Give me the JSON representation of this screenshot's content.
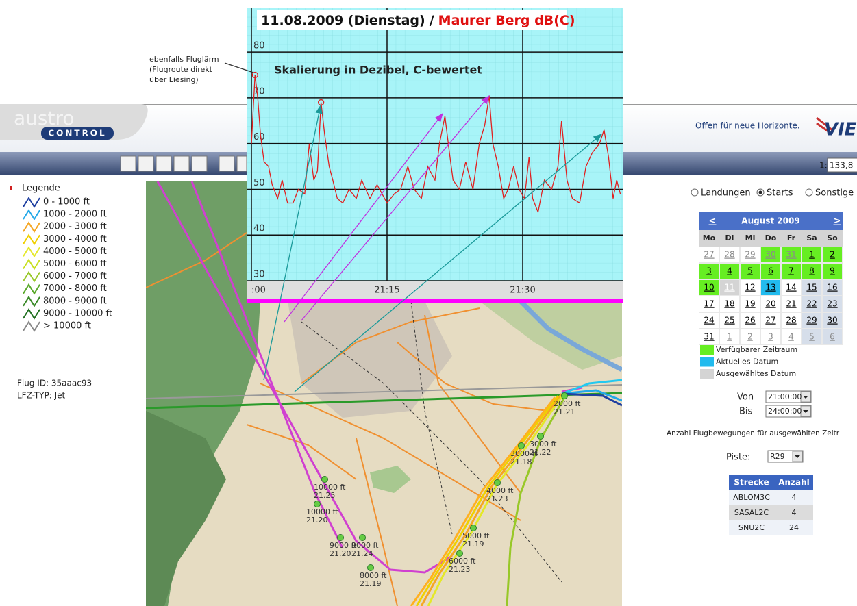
{
  "annotation": [
    "ebenfalls Fluglärm",
    "(Flugroute direkt",
    "über Liesing)"
  ],
  "header": {
    "logo_top": "austro",
    "logo_bottom": "CONTROL",
    "slogan": "Offen für neue Horizonte.",
    "logo_right": "VIE"
  },
  "toolbar": {
    "scale_prefix": "1:",
    "scale_value": "133,8"
  },
  "legend": {
    "title": "Legende",
    "items": [
      {
        "label": "0 - 1000 ft",
        "color": "#1f3fa0"
      },
      {
        "label": "1000 - 2000 ft",
        "color": "#22a8e8"
      },
      {
        "label": "2000 - 3000 ft",
        "color": "#f5a623"
      },
      {
        "label": "3000 - 4000 ft",
        "color": "#f0d000"
      },
      {
        "label": "4000 - 5000 ft",
        "color": "#e4e828"
      },
      {
        "label": "5000 - 6000 ft",
        "color": "#c8e020"
      },
      {
        "label": "6000 - 7000 ft",
        "color": "#98c828"
      },
      {
        "label": "7000 - 8000 ft",
        "color": "#58a828"
      },
      {
        "label": "8000 - 9000 ft",
        "color": "#3a8a28"
      },
      {
        "label": "9000 - 10000 ft",
        "color": "#1e6e1e"
      },
      {
        "label": "> 10000 ft",
        "color": "#888888"
      }
    ]
  },
  "flight": {
    "id": "Flug ID: 35aaac93",
    "type": "LFZ-TYP: Jet"
  },
  "chart_data": {
    "type": "line",
    "title": "11.08.2009 (Dienstag)",
    "title_separator": "/",
    "station": "Maurer Berg dB(C)",
    "annotation": "Skalierung in Dezibel, C-bewertet",
    "color": "#e02020",
    "x": [
      0,
      0.4,
      0.7,
      1.0,
      1.4,
      1.9,
      2.3,
      2.9,
      3.4,
      4.0,
      4.6,
      5.2,
      5.9,
      6.4,
      6.9,
      7.3,
      7.7,
      8.1,
      8.6,
      9.0,
      9.5,
      10.1,
      10.8,
      11.6,
      12.2,
      13.1,
      13.9,
      15.0,
      15.8,
      16.5,
      17.3,
      18.0,
      18.8,
      19.5,
      20.3,
      20.8,
      21.4,
      21.9,
      22.3,
      23.0,
      23.7,
      24.5,
      25.2,
      25.8,
      26.3,
      26.7,
      27.3,
      27.9,
      28.4,
      29.0,
      29.6,
      30.2,
      30.7,
      31.1,
      31.7,
      32.4,
      33.2,
      33.9,
      34.3,
      34.9,
      35.5,
      36.3,
      37.0,
      37.7,
      38.5,
      39.0,
      39.5,
      40.0,
      40.4,
      40.8
    ],
    "values": [
      60,
      75,
      70,
      62,
      56,
      55,
      51,
      48,
      52,
      47,
      47,
      50,
      49,
      60,
      52,
      54,
      69,
      62,
      55,
      52,
      48,
      47,
      50,
      48,
      52,
      48,
      51,
      47,
      49,
      50,
      55,
      50,
      48,
      55,
      52,
      60,
      66,
      58,
      52,
      50,
      56,
      50,
      60,
      64,
      70.5,
      60,
      55,
      48,
      50,
      55,
      50,
      48,
      57,
      48,
      45,
      52,
      50,
      55,
      65,
      52,
      48,
      47,
      55,
      58,
      60,
      63,
      57,
      48,
      52,
      49
    ],
    "markers": [
      1,
      16
    ],
    "xlim": [
      -0.5,
      41.1
    ],
    "xticks": [
      {
        "value": 0,
        "label": ":00"
      },
      {
        "value": 15,
        "label": "21:15"
      },
      {
        "value": 30,
        "label": "21:30"
      }
    ],
    "ylim": [
      30,
      89.6
    ],
    "yticks": [
      30,
      40,
      50,
      60,
      70,
      80
    ],
    "grid": true
  },
  "map_labels": [
    {
      "alt": "10000 ft",
      "time": "21.25"
    },
    {
      "alt": "10000 ft",
      "time": "21.20"
    },
    {
      "alt": "9000 ft",
      "time": "21.20"
    },
    {
      "alt": "9000 ft",
      "time": "21.24"
    },
    {
      "alt": "8000 ft",
      "time": "21.19"
    },
    {
      "alt": "6000 ft",
      "time": "21.23"
    },
    {
      "alt": "5000 ft",
      "time": "21.19"
    },
    {
      "alt": "4000 ft",
      "time": "21.23"
    },
    {
      "alt": "3000 ft",
      "time": "21.18"
    },
    {
      "alt": "3000 ft",
      "time": "21.22"
    },
    {
      "alt": "2000 ft",
      "time": "21.21"
    }
  ],
  "controls": {
    "radios": [
      {
        "label": "Landungen",
        "checked": false
      },
      {
        "label": "Starts",
        "checked": true
      },
      {
        "label": "Sonstige",
        "checked": false
      }
    ],
    "von_label": "Von",
    "von": "21:00:00",
    "bis_label": "Bis",
    "bis": "24:00:00",
    "count_label": "Anzahl Flugbewegungen für ausgewählten Zeitr",
    "piste_label": "Piste:",
    "piste": "R29"
  },
  "calendar": {
    "prev": "<",
    "next": ">",
    "month": "August 2009",
    "weekdays": [
      "Mo",
      "Di",
      "Mi",
      "Do",
      "Fr",
      "Sa",
      "So"
    ],
    "weeks": [
      [
        {
          "day": 27,
          "state": "plain",
          "outside": true
        },
        {
          "day": 28,
          "state": "plain",
          "outside": true
        },
        {
          "day": 29,
          "state": "plain",
          "outside": true
        },
        {
          "day": 30,
          "state": "available",
          "outside": true
        },
        {
          "day": 31,
          "state": "available",
          "outside": true
        },
        {
          "day": 1,
          "state": "available",
          "outside": false
        },
        {
          "day": 2,
          "state": "available",
          "outside": false
        }
      ],
      [
        {
          "day": 3,
          "state": "available",
          "outside": false
        },
        {
          "day": 4,
          "state": "available",
          "outside": false
        },
        {
          "day": 5,
          "state": "available",
          "outside": false
        },
        {
          "day": 6,
          "state": "available",
          "outside": false
        },
        {
          "day": 7,
          "state": "available",
          "outside": false
        },
        {
          "day": 8,
          "state": "available",
          "outside": false
        },
        {
          "day": 9,
          "state": "available",
          "outside": false
        }
      ],
      [
        {
          "day": 10,
          "state": "available",
          "outside": false
        },
        {
          "day": 11,
          "state": "selected",
          "outside": false
        },
        {
          "day": 12,
          "state": "plain",
          "outside": false
        },
        {
          "day": 13,
          "state": "current",
          "outside": false
        },
        {
          "day": 14,
          "state": "plain",
          "outside": false
        },
        {
          "day": 15,
          "state": "plain",
          "outside": false
        },
        {
          "day": 16,
          "state": "plain",
          "outside": false
        }
      ],
      [
        {
          "day": 17,
          "state": "plain",
          "outside": false
        },
        {
          "day": 18,
          "state": "plain",
          "outside": false
        },
        {
          "day": 19,
          "state": "plain",
          "outside": false
        },
        {
          "day": 20,
          "state": "plain",
          "outside": false
        },
        {
          "day": 21,
          "state": "plain",
          "outside": false
        },
        {
          "day": 22,
          "state": "plain",
          "outside": false
        },
        {
          "day": 23,
          "state": "plain",
          "outside": false
        }
      ],
      [
        {
          "day": 24,
          "state": "plain",
          "outside": false
        },
        {
          "day": 25,
          "state": "plain",
          "outside": false
        },
        {
          "day": 26,
          "state": "plain",
          "outside": false
        },
        {
          "day": 27,
          "state": "plain",
          "outside": false
        },
        {
          "day": 28,
          "state": "plain",
          "outside": false
        },
        {
          "day": 29,
          "state": "plain",
          "outside": false
        },
        {
          "day": 30,
          "state": "plain",
          "outside": false
        }
      ],
      [
        {
          "day": 31,
          "state": "plain",
          "outside": false
        },
        {
          "day": 1,
          "state": "plain",
          "outside": true
        },
        {
          "day": 2,
          "state": "plain",
          "outside": true
        },
        {
          "day": 3,
          "state": "plain",
          "outside": true
        },
        {
          "day": 4,
          "state": "plain",
          "outside": true
        },
        {
          "day": 5,
          "state": "plain",
          "outside": true
        },
        {
          "day": 6,
          "state": "plain",
          "outside": true
        }
      ]
    ]
  },
  "calendar_legend": [
    {
      "label": "Verfügbarer Zeitraum",
      "color": "#66ee22"
    },
    {
      "label": "Aktuelles Datum",
      "color": "#22bbee"
    },
    {
      "label": "Ausgewähltes Datum",
      "color": "#d4d4d4"
    }
  ],
  "table": {
    "headers": [
      "Strecke",
      "Anzahl"
    ],
    "rows": [
      [
        "ABLOM3C",
        4
      ],
      [
        "SASAL2C",
        4
      ],
      [
        "SNU2C",
        24
      ]
    ]
  }
}
